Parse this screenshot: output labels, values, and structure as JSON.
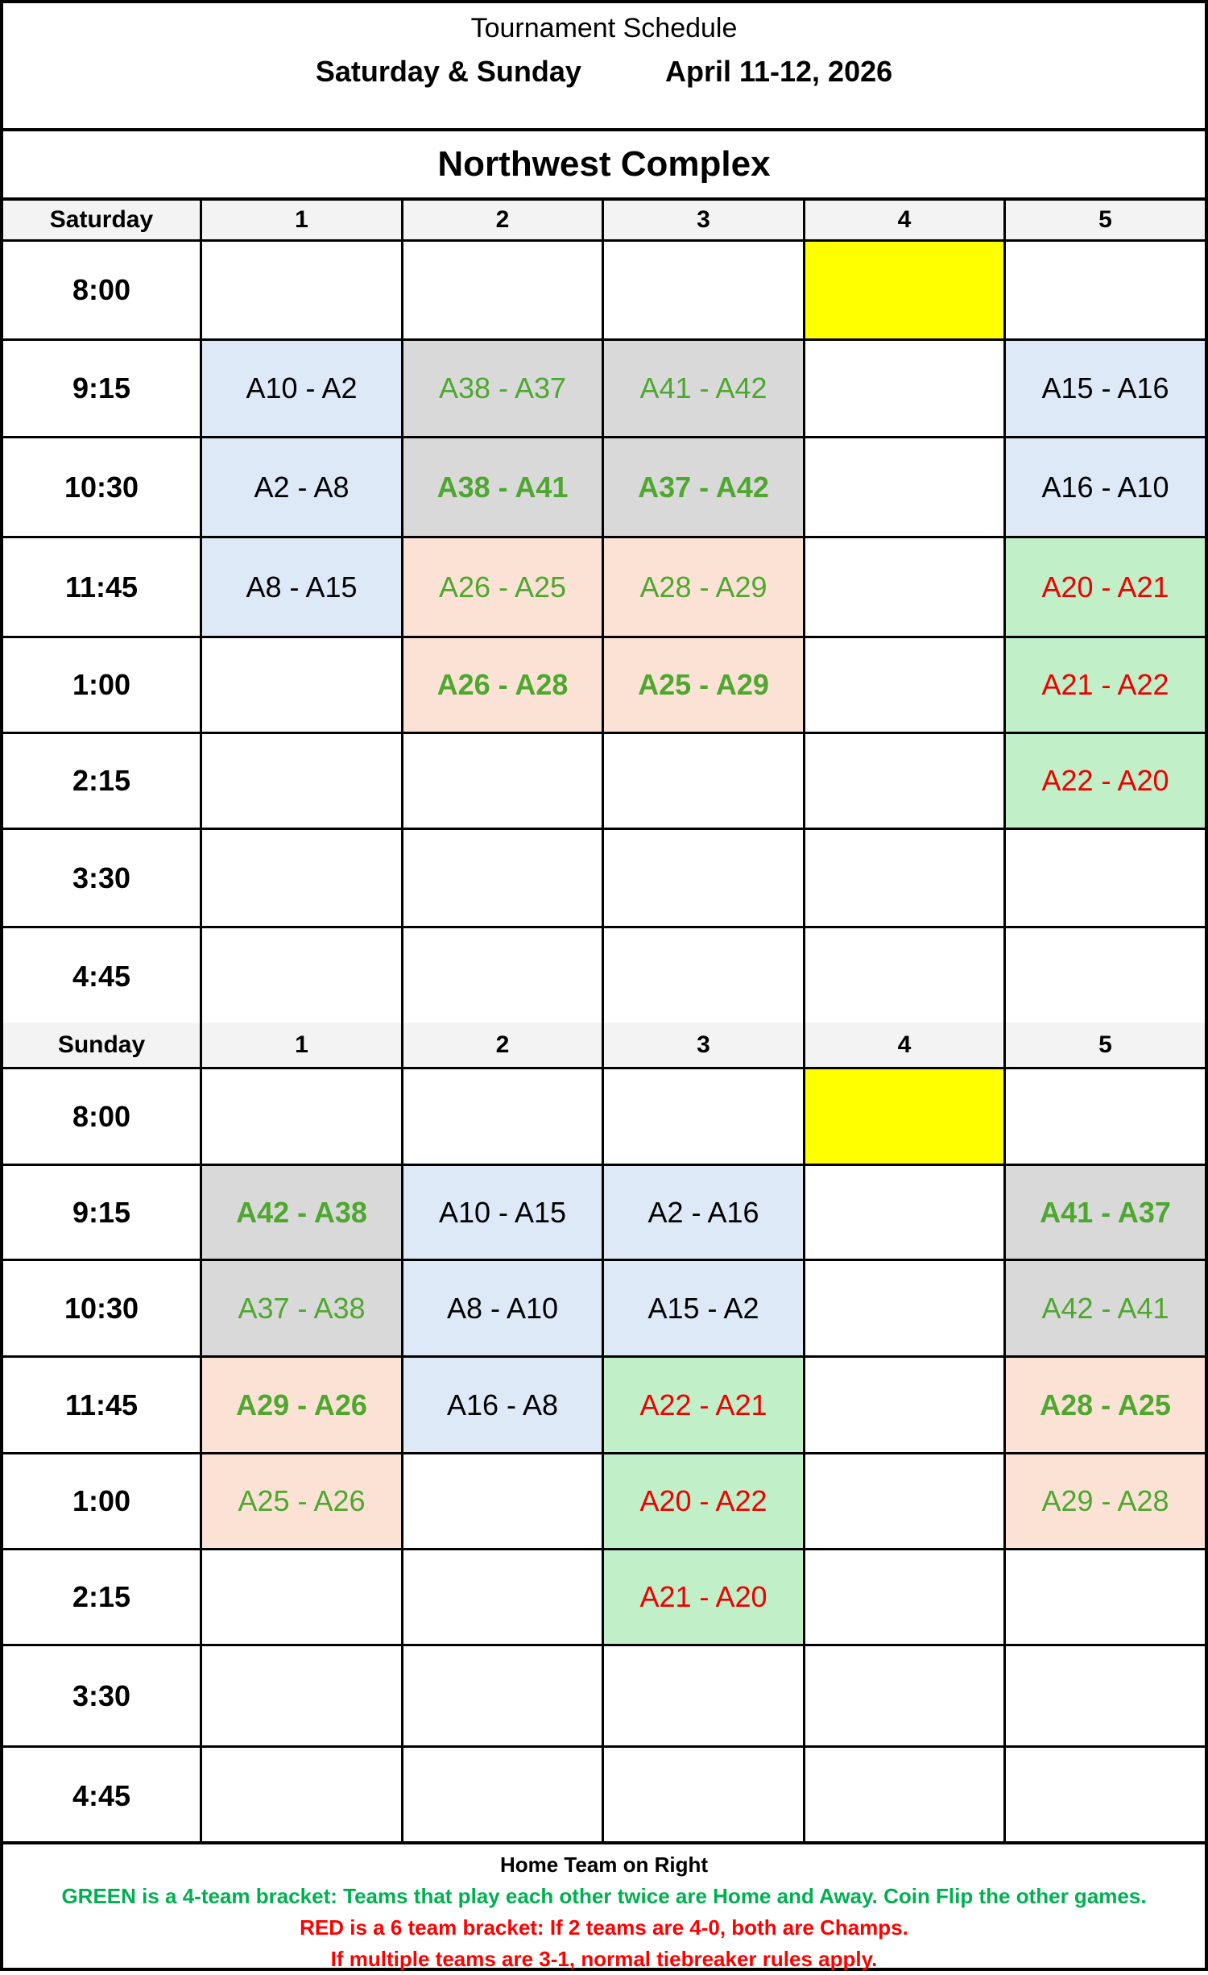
{
  "header": {
    "title": "Tournament Schedule",
    "days": "Saturday & Sunday",
    "dates": "April  11-12, 2026"
  },
  "complex": "Northwest Complex",
  "colors": {
    "blue": "#dde9f7",
    "gray": "#d9d9d9",
    "peach": "#fbe2d5",
    "green": "#c1f0c8",
    "yellow": "#ffff00",
    "green_text": "#4ea72e",
    "red_text": "#ee0000",
    "black_text": "#000000",
    "footer_green": "#00b050",
    "footer_red": "#ff0000"
  },
  "fields": [
    "1",
    "2",
    "3",
    "4",
    "5"
  ],
  "days": [
    {
      "label": "Saturday",
      "rows": [
        {
          "time": "8:00",
          "cells": [
            null,
            null,
            null,
            {
              "bg": "yellow"
            },
            null
          ]
        },
        {
          "time": "9:15",
          "cells": [
            {
              "match": "A10 - A2",
              "bg": "blue",
              "fg": "black_text"
            },
            {
              "match": "A38 - A37",
              "bg": "gray",
              "fg": "green_text"
            },
            {
              "match": "A41 - A42",
              "bg": "gray",
              "fg": "green_text"
            },
            null,
            {
              "match": "A15 - A16",
              "bg": "blue",
              "fg": "black_text"
            }
          ]
        },
        {
          "time": "10:30",
          "cells": [
            {
              "match": "A2 - A8",
              "bg": "blue",
              "fg": "black_text"
            },
            {
              "match": "A38 - A41",
              "bg": "gray",
              "fg": "green_text",
              "bold": true
            },
            {
              "match": "A37 - A42",
              "bg": "gray",
              "fg": "green_text",
              "bold": true
            },
            null,
            {
              "match": "A16 - A10",
              "bg": "blue",
              "fg": "black_text"
            }
          ]
        },
        {
          "time": "11:45",
          "cells": [
            {
              "match": "A8 - A15",
              "bg": "blue",
              "fg": "black_text"
            },
            {
              "match": "A26 - A25",
              "bg": "peach",
              "fg": "green_text"
            },
            {
              "match": "A28 - A29",
              "bg": "peach",
              "fg": "green_text"
            },
            null,
            {
              "match": "A20 - A21",
              "bg": "green",
              "fg": "red_text"
            }
          ]
        },
        {
          "time": "1:00",
          "cells": [
            null,
            {
              "match": "A26 - A28",
              "bg": "peach",
              "fg": "green_text",
              "bold": true
            },
            {
              "match": "A25 - A29",
              "bg": "peach",
              "fg": "green_text",
              "bold": true
            },
            null,
            {
              "match": "A21 - A22",
              "bg": "green",
              "fg": "red_text"
            }
          ]
        },
        {
          "time": "2:15",
          "cells": [
            null,
            null,
            null,
            null,
            {
              "match": "A22 - A20",
              "bg": "green",
              "fg": "red_text"
            }
          ]
        },
        {
          "time": "3:30",
          "cells": [
            null,
            null,
            null,
            null,
            null
          ]
        },
        {
          "time": "4:45",
          "cells": [
            null,
            null,
            null,
            null,
            null
          ]
        }
      ]
    },
    {
      "label": "Sunday",
      "rows": [
        {
          "time": "8:00",
          "cells": [
            null,
            null,
            null,
            {
              "bg": "yellow"
            },
            null
          ]
        },
        {
          "time": "9:15",
          "cells": [
            {
              "match": "A42 - A38",
              "bg": "gray",
              "fg": "green_text",
              "bold": true
            },
            {
              "match": "A10 - A15",
              "bg": "blue",
              "fg": "black_text"
            },
            {
              "match": "A2 - A16",
              "bg": "blue",
              "fg": "black_text"
            },
            null,
            {
              "match": "A41 - A37",
              "bg": "gray",
              "fg": "green_text",
              "bold": true
            }
          ]
        },
        {
          "time": "10:30",
          "cells": [
            {
              "match": "A37 - A38",
              "bg": "gray",
              "fg": "green_text"
            },
            {
              "match": "A8 - A10",
              "bg": "blue",
              "fg": "black_text"
            },
            {
              "match": "A15 - A2",
              "bg": "blue",
              "fg": "black_text"
            },
            null,
            {
              "match": "A42 - A41",
              "bg": "gray",
              "fg": "green_text"
            }
          ]
        },
        {
          "time": "11:45",
          "cells": [
            {
              "match": "A29 - A26",
              "bg": "peach",
              "fg": "green_text",
              "bold": true
            },
            {
              "match": "A16 - A8",
              "bg": "blue",
              "fg": "black_text"
            },
            {
              "match": "A22 - A21",
              "bg": "green",
              "fg": "red_text"
            },
            null,
            {
              "match": "A28 - A25",
              "bg": "peach",
              "fg": "green_text",
              "bold": true
            }
          ]
        },
        {
          "time": "1:00",
          "cells": [
            {
              "match": "A25 - A26",
              "bg": "peach",
              "fg": "green_text"
            },
            null,
            {
              "match": "A20 - A22",
              "bg": "green",
              "fg": "red_text"
            },
            null,
            {
              "match": "A29 - A28",
              "bg": "peach",
              "fg": "green_text"
            }
          ]
        },
        {
          "time": "2:15",
          "cells": [
            null,
            null,
            {
              "match": "A21 - A20",
              "bg": "green",
              "fg": "red_text"
            },
            null,
            null
          ]
        },
        {
          "time": "3:30",
          "cells": [
            null,
            null,
            null,
            null,
            null
          ]
        },
        {
          "time": "4:45",
          "cells": [
            null,
            null,
            null,
            null,
            null
          ]
        }
      ]
    }
  ],
  "footer": {
    "home": "Home Team on Right",
    "green_note": "GREEN is a 4-team bracket:  Teams that play each other twice are Home and Away.  Coin Flip the other games.",
    "red_note1": "RED is a 6 team bracket:  If 2 teams are 4-0, both are Champs.",
    "red_note2": "If multiple teams are 3-1, normal tiebreaker rules apply."
  }
}
